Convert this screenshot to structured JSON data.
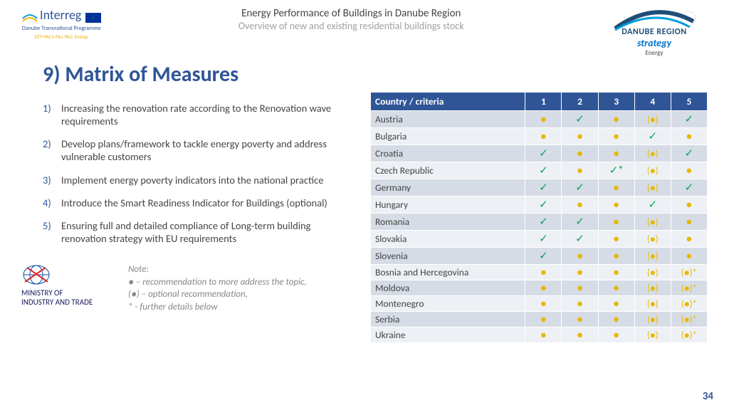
{
  "header": {
    "interreg": "Interreg",
    "dtp": "Danube Transnational Programme",
    "dtp_sub": "DTP-PAC1-PA2 PA2: Energy",
    "title": "Energy Performance of Buildings in Danube Region",
    "subtitle": "Overview of new and existing residential buildings stock",
    "danube": "DANUBE REGION",
    "strategy": "strategy",
    "energy": "Energy"
  },
  "slide_title": "9) Matrix of Measures",
  "measures": [
    "Increasing the renovation rate according to the Renovation wave requirements",
    "Develop plans/framework to tackle energy poverty and address vulnerable customers",
    "Implement energy poverty indicators into the national practice",
    "Introduce the Smart Readiness Indicator for Buildings (optional)",
    "Ensuring full and detailed compliance of Long-term building renovation strategy with EU requirements"
  ],
  "note": {
    "heading": "Note:",
    "line1": "● – recommendation to more address the topic,",
    "line2": "(●) – optional recommendation,",
    "line3": "* - further details below"
  },
  "ministry": {
    "line1": "MINISTRY OF",
    "line2": "INDUSTRY AND TRADE"
  },
  "table": {
    "header": "Country / criteria",
    "cols": [
      "1",
      "2",
      "3",
      "4",
      "5"
    ],
    "rows": [
      {
        "country": "Austria",
        "cells": [
          "dot",
          "chk",
          "dot",
          "paren",
          "chk"
        ]
      },
      {
        "country": "Bulgaria",
        "cells": [
          "dot",
          "dot",
          "dot",
          "chk",
          "dot"
        ]
      },
      {
        "country": "Croatia",
        "cells": [
          "chk",
          "dot",
          "dot",
          "paren",
          "chk"
        ]
      },
      {
        "country": "Czech Republic",
        "cells": [
          "chk",
          "dot",
          "chk_star",
          "paren",
          "dot"
        ]
      },
      {
        "country": "Germany",
        "cells": [
          "chk",
          "chk",
          "dot",
          "paren",
          "chk"
        ]
      },
      {
        "country": "Hungary",
        "cells": [
          "chk",
          "dot",
          "dot",
          "chk",
          "dot"
        ]
      },
      {
        "country": "Romania",
        "cells": [
          "chk",
          "chk",
          "dot",
          "paren",
          "dot"
        ]
      },
      {
        "country": "Slovakia",
        "cells": [
          "chk",
          "chk",
          "dot",
          "paren",
          "dot"
        ]
      },
      {
        "country": "Slovenia",
        "cells": [
          "chk",
          "dot",
          "dot",
          "paren",
          "dot"
        ]
      },
      {
        "country": "Bosnia and Hercegovina",
        "cells": [
          "dot",
          "dot",
          "dot",
          "paren",
          "paren_star"
        ]
      },
      {
        "country": "Moldova",
        "cells": [
          "dot",
          "dot",
          "dot",
          "paren",
          "paren_star"
        ]
      },
      {
        "country": "Montenegro",
        "cells": [
          "dot",
          "dot",
          "dot",
          "paren",
          "paren_star"
        ]
      },
      {
        "country": "Serbia",
        "cells": [
          "dot",
          "dot",
          "dot",
          "paren",
          "paren_star"
        ]
      },
      {
        "country": "Ukraine",
        "cells": [
          "dot",
          "dot",
          "dot",
          "paren",
          "paren_star"
        ]
      }
    ]
  },
  "symbols": {
    "dot": "●",
    "chk": "✓",
    "chk_star": "✓*",
    "paren": "(●)",
    "paren_star": "(●)*"
  },
  "page_number": "34"
}
